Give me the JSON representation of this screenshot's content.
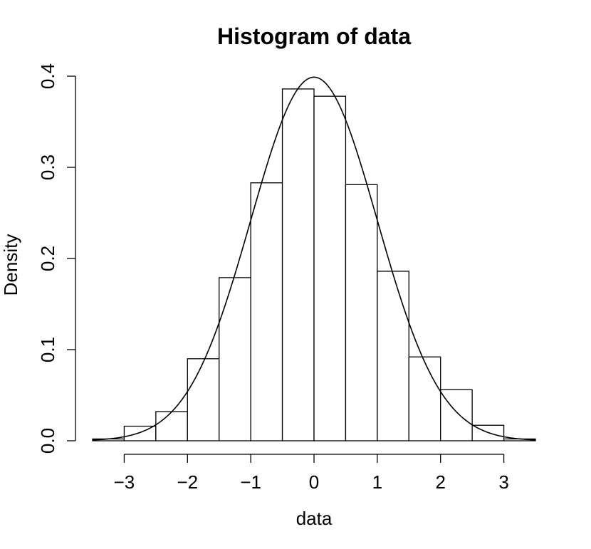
{
  "chart_data": {
    "type": "bar",
    "title": "Histogram of data",
    "xlabel": "data",
    "ylabel": "Density",
    "xlim": [
      -3.5,
      3.5
    ],
    "ylim": [
      0,
      0.4
    ],
    "x_ticks": [
      -3,
      -2,
      -1,
      0,
      1,
      2,
      3
    ],
    "x_tick_labels": [
      "−3",
      "−2",
      "−1",
      "0",
      "1",
      "2",
      "3"
    ],
    "y_ticks": [
      0,
      0.1,
      0.2,
      0.3,
      0.4
    ],
    "y_tick_labels": [
      "0.0",
      "0.1",
      "0.2",
      "0.3",
      "0.4"
    ],
    "bin_edges": [
      -3.5,
      -3.0,
      -2.5,
      -2.0,
      -1.5,
      -1.0,
      -0.5,
      0.0,
      0.5,
      1.0,
      1.5,
      2.0,
      2.5,
      3.0,
      3.5
    ],
    "values": [
      0.002,
      0.016,
      0.032,
      0.09,
      0.179,
      0.283,
      0.386,
      0.378,
      0.281,
      0.186,
      0.092,
      0.056,
      0.017,
      0.002
    ],
    "overlay_curve": {
      "type": "line",
      "function": "normal_density",
      "mean": 0,
      "sd": 1
    },
    "grid": false,
    "legend": "none"
  }
}
